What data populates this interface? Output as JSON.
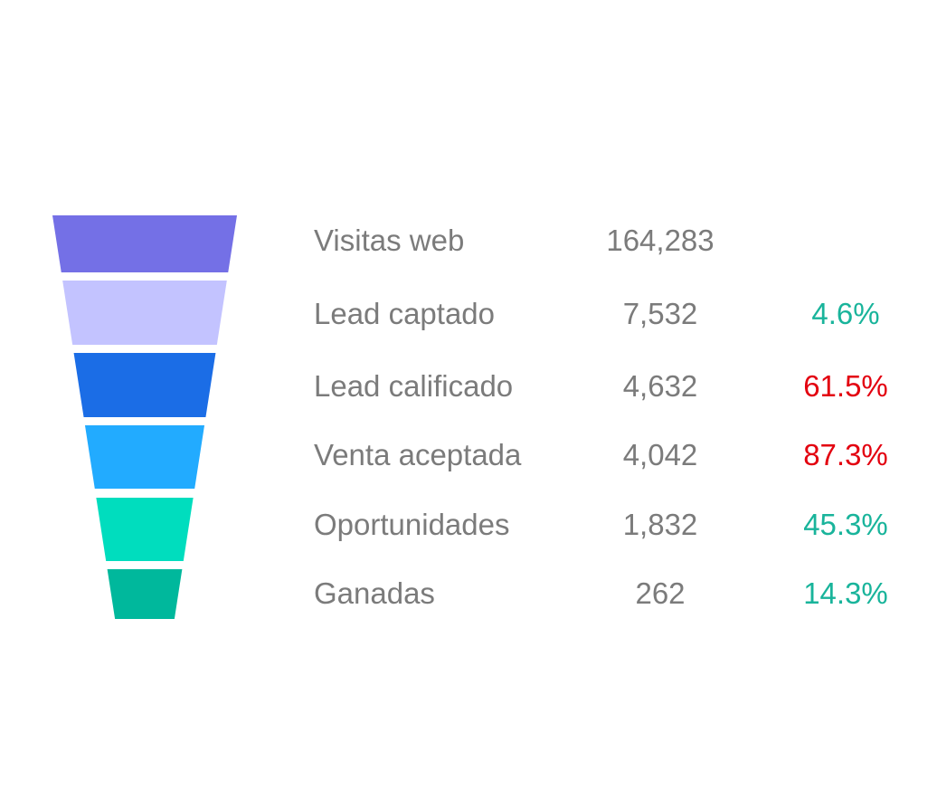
{
  "chart_data": {
    "type": "funnel",
    "stages": [
      {
        "label": "Visitas web",
        "value": 164283,
        "value_text": "164,283",
        "rate_text": "",
        "rate_status": "none",
        "color": "#7470E6"
      },
      {
        "label": "Lead captado",
        "value": 7532,
        "value_text": "7,532",
        "rate_text": "4.6%",
        "rate_status": "good",
        "color": "#C3C3FF"
      },
      {
        "label": "Lead calificado",
        "value": 4632,
        "value_text": "4,632",
        "rate_text": "61.5%",
        "rate_status": "bad",
        "color": "#1B6DE6"
      },
      {
        "label": "Venta aceptada",
        "value": 4042,
        "value_text": "4,042",
        "rate_text": "87.3%",
        "rate_status": "bad",
        "color": "#22ABFF"
      },
      {
        "label": "Oportunidades",
        "value": 1832,
        "value_text": "1,832",
        "rate_text": "45.3%",
        "rate_status": "good",
        "color": "#00DDBE"
      },
      {
        "label": "Ganadas",
        "value": 262,
        "value_text": "262",
        "rate_text": "14.3%",
        "rate_status": "good",
        "color": "#00B89C"
      }
    ],
    "colors": {
      "good": "#19B49B",
      "bad": "#E3000F"
    }
  }
}
